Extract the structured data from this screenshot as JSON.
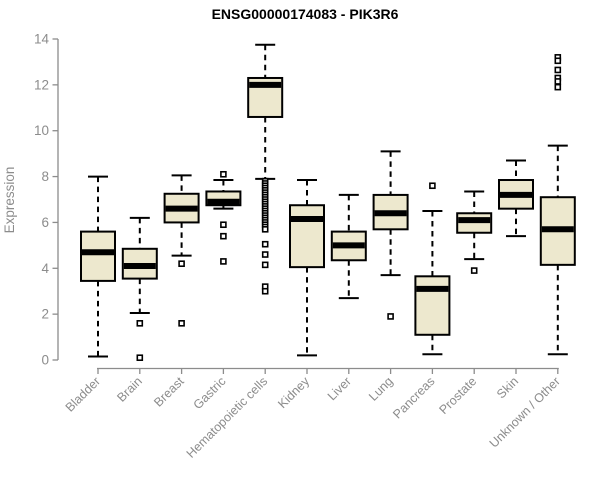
{
  "chart_data": {
    "type": "boxplot",
    "title": "ENSG00000174083 - PIK3R6",
    "ylabel": "Expression",
    "xlabel": "",
    "ylim": [
      0,
      14
    ],
    "yticks": [
      0,
      2,
      4,
      6,
      8,
      10,
      12,
      14
    ],
    "grid": false,
    "legend": "none",
    "categories": [
      "Bladder",
      "Brain",
      "Breast",
      "Gastric",
      "Hematopoietic cells",
      "Kidney",
      "Liver",
      "Lung",
      "Pancreas",
      "Prostate",
      "Skin",
      "Unknown / Other"
    ],
    "boxes": [
      {
        "category": "Bladder",
        "low": 0.15,
        "q1": 3.45,
        "median": 4.7,
        "q3": 5.6,
        "high": 8.0,
        "outliers": []
      },
      {
        "category": "Brain",
        "low": 2.05,
        "q1": 3.55,
        "median": 4.1,
        "q3": 4.85,
        "high": 6.2,
        "outliers": [
          1.6,
          0.1
        ]
      },
      {
        "category": "Breast",
        "low": 4.55,
        "q1": 6.0,
        "median": 6.6,
        "q3": 7.25,
        "high": 8.05,
        "outliers": [
          4.2,
          1.6
        ]
      },
      {
        "category": "Gastric",
        "low": 6.6,
        "q1": 6.75,
        "median": 6.9,
        "q3": 7.35,
        "high": 7.85,
        "outliers": [
          8.1,
          5.9,
          5.4,
          4.3
        ]
      },
      {
        "category": "Hematopoietic cells",
        "low": 7.9,
        "q1": 10.6,
        "median": 12.0,
        "q3": 12.3,
        "high": 13.75,
        "outliers": [
          7.8,
          7.7,
          7.6,
          7.5,
          7.4,
          7.3,
          7.2,
          7.1,
          7.0,
          6.9,
          6.8,
          6.7,
          6.6,
          6.5,
          6.4,
          6.3,
          6.2,
          6.1,
          6.0,
          5.9,
          5.8,
          5.7,
          5.05,
          4.6,
          4.15,
          3.2,
          3.0
        ]
      },
      {
        "category": "Kidney",
        "low": 0.2,
        "q1": 4.05,
        "median": 6.15,
        "q3": 6.75,
        "high": 7.85,
        "outliers": []
      },
      {
        "category": "Liver",
        "low": 2.7,
        "q1": 4.35,
        "median": 5.0,
        "q3": 5.6,
        "high": 7.2,
        "outliers": []
      },
      {
        "category": "Lung",
        "low": 3.7,
        "q1": 5.7,
        "median": 6.4,
        "q3": 7.2,
        "high": 9.1,
        "outliers": [
          1.9
        ]
      },
      {
        "category": "Pancreas",
        "low": 0.25,
        "q1": 1.1,
        "median": 3.1,
        "q3": 3.65,
        "high": 6.5,
        "outliers": [
          7.6
        ]
      },
      {
        "category": "Prostate",
        "low": 4.4,
        "q1": 5.55,
        "median": 6.1,
        "q3": 6.4,
        "high": 7.35,
        "outliers": [
          3.9
        ]
      },
      {
        "category": "Skin",
        "low": 5.4,
        "q1": 6.6,
        "median": 7.2,
        "q3": 7.85,
        "high": 8.7,
        "outliers": []
      },
      {
        "category": "Unknown / Other",
        "low": 0.25,
        "q1": 4.15,
        "median": 5.7,
        "q3": 7.1,
        "high": 9.35,
        "outliers": [
          13.2,
          13.05,
          12.65,
          12.3,
          12.15,
          11.9
        ]
      }
    ],
    "colors": {
      "box_fill": "#EDE8CE",
      "box_border": "#000000",
      "median": "#000000",
      "whisker": "#000000",
      "outlier_fill": "#FFFFFF",
      "outlier_border": "#000000",
      "axis": "#8C8C8C",
      "tick_text": "#8C8C8C",
      "title_text": "#000000",
      "background": "#FFFFFF"
    }
  }
}
